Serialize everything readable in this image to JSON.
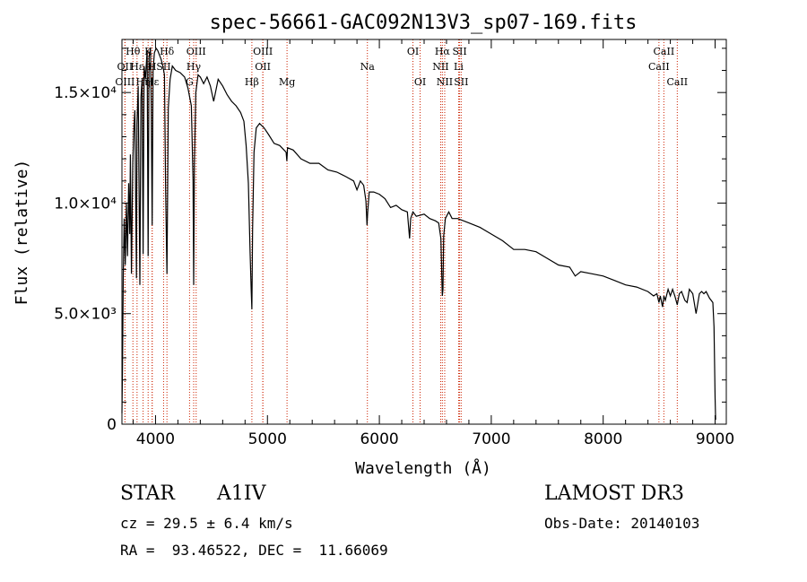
{
  "chart_data": {
    "type": "line",
    "title": "spec-56661-GAC092N13V3_sp07-169.fits",
    "xlabel": "Wavelength (Å)",
    "ylabel": "Flux (relative)",
    "xlim": [
      3700,
      9100
    ],
    "ylim": [
      0,
      17400
    ],
    "x_ticks": [
      4000,
      5000,
      6000,
      7000,
      8000,
      9000
    ],
    "x_tick_labels": [
      "4000",
      "5000",
      "6000",
      "7000",
      "8000",
      "9000"
    ],
    "y_ticks": [
      0,
      5000,
      10000,
      15000
    ],
    "y_tick_labels": [
      "0",
      "5.0×10³",
      "1.0×10⁴",
      "1.5×10⁴"
    ],
    "series": [
      {
        "name": "spectrum",
        "color": "#000000",
        "x": [
          3700,
          3705,
          3712,
          3720,
          3730,
          3740,
          3750,
          3760,
          3770,
          3775,
          3785,
          3797,
          3805,
          3815,
          3830,
          3835,
          3845,
          3860,
          3870,
          3880,
          3889,
          3898,
          3910,
          3925,
          3934,
          3942,
          3955,
          3962,
          3970,
          3978,
          3990,
          4005,
          4020,
          4035,
          4050,
          4065,
          4080,
          4090,
          4102,
          4114,
          4130,
          4150,
          4180,
          4220,
          4260,
          4290,
          4320,
          4335,
          4341,
          4347,
          4360,
          4380,
          4400,
          4430,
          4460,
          4490,
          4520,
          4560,
          4600,
          4640,
          4680,
          4720,
          4760,
          4790,
          4810,
          4830,
          4845,
          4855,
          4861,
          4867,
          4880,
          4900,
          4930,
          4970,
          5010,
          5060,
          5110,
          5167,
          5173,
          5180,
          5230,
          5300,
          5380,
          5460,
          5540,
          5620,
          5700,
          5770,
          5800,
          5830,
          5860,
          5880,
          5890,
          5896,
          5910,
          5950,
          6000,
          6050,
          6100,
          6150,
          6200,
          6250,
          6270,
          6280,
          6300,
          6330,
          6400,
          6450,
          6500,
          6530,
          6550,
          6558,
          6563,
          6568,
          6575,
          6590,
          6620,
          6650,
          6700,
          6800,
          6900,
          7000,
          7100,
          7200,
          7300,
          7400,
          7500,
          7600,
          7700,
          7750,
          7800,
          7900,
          8000,
          8100,
          8200,
          8300,
          8400,
          8450,
          8480,
          8498,
          8510,
          8530,
          8542,
          8555,
          8580,
          8600,
          8620,
          8640,
          8662,
          8680,
          8700,
          8730,
          8750,
          8770,
          8800,
          8830,
          8860,
          8880,
          8900,
          8920,
          8950,
          8980,
          8990,
          9000,
          9005
        ],
        "y": [
          500,
          2500,
          6800,
          9300,
          7200,
          10000,
          7600,
          10900,
          8600,
          12200,
          6800,
          11800,
          13200,
          14200,
          6600,
          13600,
          15300,
          6300,
          14800,
          15600,
          7700,
          16200,
          15600,
          16900,
          7600,
          16600,
          17000,
          14300,
          9000,
          16000,
          16800,
          17000,
          16900,
          16700,
          16500,
          16200,
          15800,
          10600,
          6800,
          14300,
          15600,
          16200,
          16000,
          15900,
          15700,
          15200,
          14400,
          11000,
          6300,
          11800,
          15000,
          15800,
          15700,
          15400,
          15700,
          15300,
          14600,
          15600,
          15300,
          14900,
          14600,
          14400,
          14100,
          13700,
          12600,
          10900,
          7800,
          6000,
          5200,
          8800,
          12300,
          13400,
          13600,
          13400,
          13100,
          12700,
          12600,
          12300,
          11900,
          12500,
          12400,
          12000,
          11800,
          11800,
          11500,
          11400,
          11200,
          11000,
          10600,
          11000,
          10800,
          10100,
          9000,
          9600,
          10500,
          10500,
          10400,
          10200,
          9800,
          9900,
          9700,
          9600,
          8400,
          9300,
          9600,
          9400,
          9500,
          9300,
          9200,
          9100,
          8400,
          6700,
          5800,
          6100,
          8500,
          9300,
          9600,
          9300,
          9300,
          9100,
          8900,
          8600,
          8300,
          7900,
          7900,
          7800,
          7500,
          7200,
          7100,
          6700,
          6900,
          6800,
          6700,
          6500,
          6300,
          6200,
          6000,
          5800,
          5900,
          5500,
          5800,
          5300,
          5800,
          5600,
          6100,
          5800,
          6100,
          5800,
          5400,
          5900,
          6000,
          5600,
          5500,
          6100,
          5900,
          5000,
          5900,
          6000,
          5900,
          6000,
          5700,
          5500,
          4400,
          1200,
          200
        ]
      }
    ],
    "spectral_lines": [
      {
        "label": "Hθ",
        "x": 3798,
        "row": 0
      },
      {
        "label": "OII",
        "x": 3727,
        "row": 1
      },
      {
        "label": "OIII",
        "x": 3727,
        "row": 2
      },
      {
        "label": "Hε",
        "x": 3835,
        "row": 1
      },
      {
        "label": "Hη",
        "x": 3889,
        "row": 2
      },
      {
        "label": "K",
        "x": 3934,
        "row": 0
      },
      {
        "label": "H",
        "x": 3970,
        "row": 1
      },
      {
        "label": "Hε",
        "x": 3970,
        "row": 2
      },
      {
        "label": "SII",
        "x": 4072,
        "row": 1
      },
      {
        "label": "Hδ",
        "x": 4102,
        "row": 0
      },
      {
        "label": "OIII",
        "x": 4363,
        "row": 0
      },
      {
        "label": "Hγ",
        "x": 4341,
        "row": 1
      },
      {
        "label": "G",
        "x": 4304,
        "row": 2
      },
      {
        "label": "OIII",
        "x": 4959,
        "row": 0
      },
      {
        "label": "OII",
        "x": 4959,
        "row": 1
      },
      {
        "label": "Hβ",
        "x": 4861,
        "row": 2
      },
      {
        "label": "Mg",
        "x": 5175,
        "row": 2
      },
      {
        "label": "Na",
        "x": 5893,
        "row": 1
      },
      {
        "label": "OI",
        "x": 6300,
        "row": 0
      },
      {
        "label": "OI",
        "x": 6364,
        "row": 2
      },
      {
        "label": "Hα",
        "x": 6563,
        "row": 0
      },
      {
        "label": "SII",
        "x": 6717,
        "row": 0
      },
      {
        "label": "NII",
        "x": 6548,
        "row": 1
      },
      {
        "label": "Li",
        "x": 6708,
        "row": 1
      },
      {
        "label": "NII",
        "x": 6584,
        "row": 2
      },
      {
        "label": "SII",
        "x": 6731,
        "row": 2
      },
      {
        "label": "CaII",
        "x": 8542,
        "row": 0
      },
      {
        "label": "CaII",
        "x": 8498,
        "row": 1
      },
      {
        "label": "CaII",
        "x": 8662,
        "row": 2
      }
    ],
    "line_marker_color": "#cc2200"
  },
  "info": {
    "object_type": "STAR",
    "subclass": "A1IV",
    "survey": "LAMOST DR3",
    "redshift_line": "cz = 29.5 ± 6.4 km/s",
    "obs_date_line": "Obs-Date: 20140103",
    "coords_line": "RA =  93.46522, DEC =  11.66069"
  }
}
